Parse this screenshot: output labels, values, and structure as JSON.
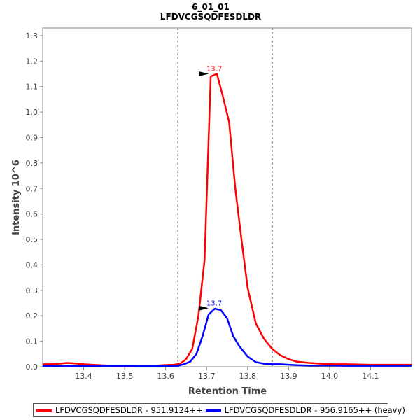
{
  "chart_data": {
    "type": "line",
    "title": "6_01_01",
    "subtitle": "LFDVCGSQDFESDLDR",
    "xlabel": "Retention Time",
    "ylabel": "Intensity 10^6",
    "xlim": [
      13.3,
      14.2
    ],
    "ylim": [
      0,
      1.33
    ],
    "x_ticks": [
      "13.4",
      "13.5",
      "13.6",
      "13.7",
      "13.8",
      "13.9",
      "14.0",
      "14.1"
    ],
    "y_ticks": [
      "0.0",
      "0.1",
      "0.2",
      "0.3",
      "0.4",
      "0.5",
      "0.6",
      "0.7",
      "0.8",
      "0.9",
      "1.0",
      "1.1",
      "1.2",
      "1.3"
    ],
    "integration_bounds": [
      13.63,
      13.86
    ],
    "series": [
      {
        "name": "LFDVCGSQDFESDLDR - 951.9124++",
        "color": "#ff0000",
        "peak_label": "13.7",
        "peak": {
          "x": 13.71,
          "y": 1.15
        },
        "x": [
          13.3,
          13.32,
          13.34,
          13.36,
          13.38,
          13.4,
          13.42,
          13.44,
          13.46,
          13.48,
          13.5,
          13.52,
          13.54,
          13.56,
          13.58,
          13.6,
          13.62,
          13.635,
          13.65,
          13.665,
          13.68,
          13.695,
          13.71,
          13.725,
          13.74,
          13.755,
          13.77,
          13.785,
          13.8,
          13.82,
          13.84,
          13.86,
          13.88,
          13.9,
          13.92,
          13.95,
          13.98,
          14.01,
          14.04,
          14.07,
          14.1,
          14.13,
          14.16,
          14.2
        ],
        "y": [
          0.01,
          0.01,
          0.012,
          0.015,
          0.013,
          0.01,
          0.008,
          0.006,
          0.005,
          0.005,
          0.005,
          0.005,
          0.004,
          0.004,
          0.005,
          0.007,
          0.008,
          0.012,
          0.03,
          0.07,
          0.2,
          0.42,
          1.14,
          1.15,
          1.06,
          0.96,
          0.7,
          0.5,
          0.31,
          0.17,
          0.11,
          0.07,
          0.045,
          0.03,
          0.02,
          0.015,
          0.012,
          0.01,
          0.01,
          0.009,
          0.008,
          0.008,
          0.008,
          0.008
        ]
      },
      {
        "name": "LFDVCGSQDFESDLDR - 956.9165++ (heavy)",
        "color": "#0000ff",
        "peak_label": "13.7",
        "peak": {
          "x": 13.71,
          "y": 0.23
        },
        "x": [
          13.3,
          13.33,
          13.36,
          13.39,
          13.42,
          13.45,
          13.48,
          13.51,
          13.54,
          13.57,
          13.6,
          13.63,
          13.645,
          13.66,
          13.675,
          13.69,
          13.705,
          13.72,
          13.735,
          13.75,
          13.765,
          13.78,
          13.8,
          13.82,
          13.84,
          13.86,
          13.88,
          13.9,
          13.92,
          13.95,
          13.98,
          14.01,
          14.04,
          14.07,
          14.1,
          14.13,
          14.16,
          14.2
        ],
        "y": [
          0.003,
          0.003,
          0.004,
          0.003,
          0.003,
          0.003,
          0.003,
          0.003,
          0.003,
          0.003,
          0.003,
          0.004,
          0.01,
          0.02,
          0.05,
          0.12,
          0.205,
          0.228,
          0.222,
          0.19,
          0.12,
          0.08,
          0.04,
          0.018,
          0.012,
          0.01,
          0.01,
          0.008,
          0.006,
          0.005,
          0.005,
          0.005,
          0.004,
          0.004,
          0.004,
          0.004,
          0.004,
          0.004
        ]
      }
    ],
    "legend": {
      "position": "bottom",
      "labels": [
        "LFDVCGSQDFESDLDR - 951.9124++",
        "LFDVCGSQDFESDLDR - 956.9165++ (heavy)"
      ]
    }
  }
}
